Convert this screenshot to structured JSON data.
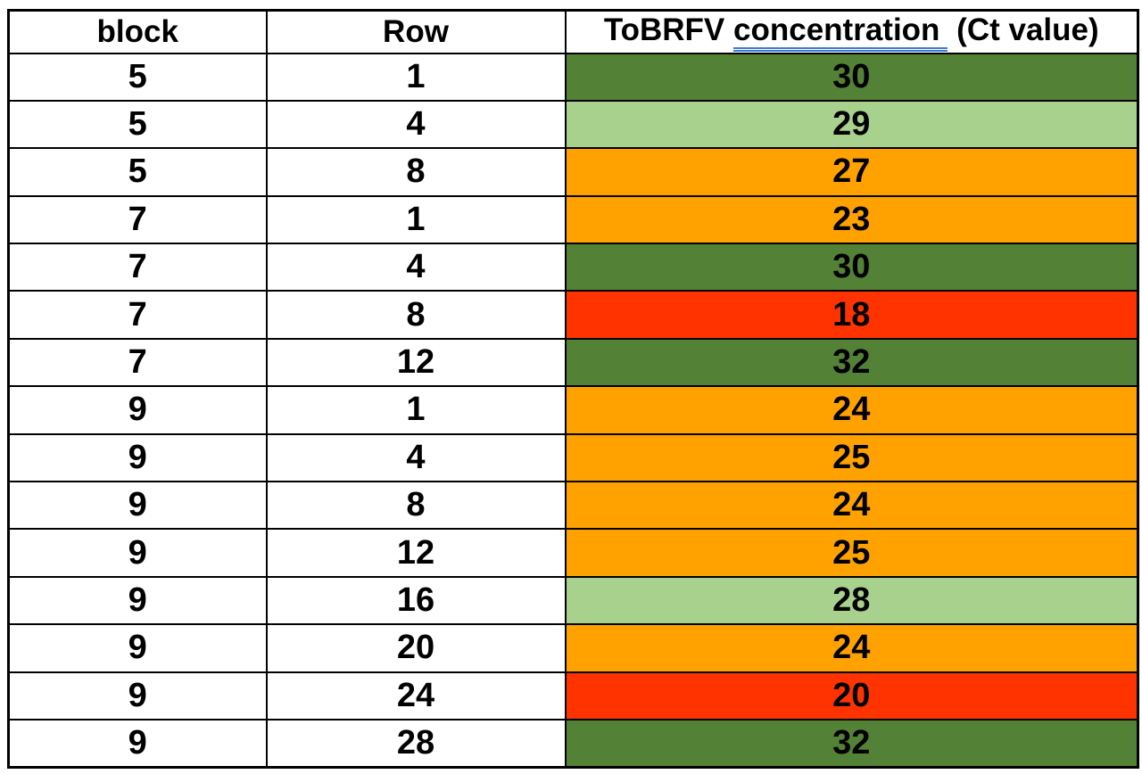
{
  "chart_data": {
    "type": "table",
    "columns": [
      {
        "key": "block",
        "label": "block"
      },
      {
        "key": "row",
        "label": "Row"
      },
      {
        "key": "ct_value",
        "label": "ToBRFV concentration  (Ct value)",
        "label_parts": {
          "prefix": "ToBRFV ",
          "underlined": "concentration",
          "suffix": " (Ct value)"
        }
      }
    ],
    "rows": [
      {
        "block": "5",
        "row": "1",
        "ct_value": "30",
        "ct_color": "dark-green"
      },
      {
        "block": "5",
        "row": "4",
        "ct_value": "29",
        "ct_color": "light-green"
      },
      {
        "block": "5",
        "row": "8",
        "ct_value": "27",
        "ct_color": "orange"
      },
      {
        "block": "7",
        "row": "1",
        "ct_value": "23",
        "ct_color": "orange"
      },
      {
        "block": "7",
        "row": "4",
        "ct_value": "30",
        "ct_color": "dark-green"
      },
      {
        "block": "7",
        "row": "8",
        "ct_value": "18",
        "ct_color": "red"
      },
      {
        "block": "7",
        "row": "12",
        "ct_value": "32",
        "ct_color": "dark-green"
      },
      {
        "block": "9",
        "row": "1",
        "ct_value": "24",
        "ct_color": "orange"
      },
      {
        "block": "9",
        "row": "4",
        "ct_value": "25",
        "ct_color": "orange"
      },
      {
        "block": "9",
        "row": "8",
        "ct_value": "24",
        "ct_color": "orange"
      },
      {
        "block": "9",
        "row": "12",
        "ct_value": "25",
        "ct_color": "orange"
      },
      {
        "block": "9",
        "row": "16",
        "ct_value": "28",
        "ct_color": "light-green"
      },
      {
        "block": "9",
        "row": "20",
        "ct_value": "24",
        "ct_color": "orange"
      },
      {
        "block": "9",
        "row": "24",
        "ct_value": "20",
        "ct_color": "red"
      },
      {
        "block": "9",
        "row": "28",
        "ct_value": "32",
        "ct_color": "dark-green"
      }
    ],
    "colors": {
      "dark-green": "#538135",
      "light-green": "#A9D18E",
      "orange": "#FFA200",
      "red": "#FF3300",
      "underline_blue": "#3E7BD6",
      "border": "#000000",
      "text": "#000000"
    }
  }
}
